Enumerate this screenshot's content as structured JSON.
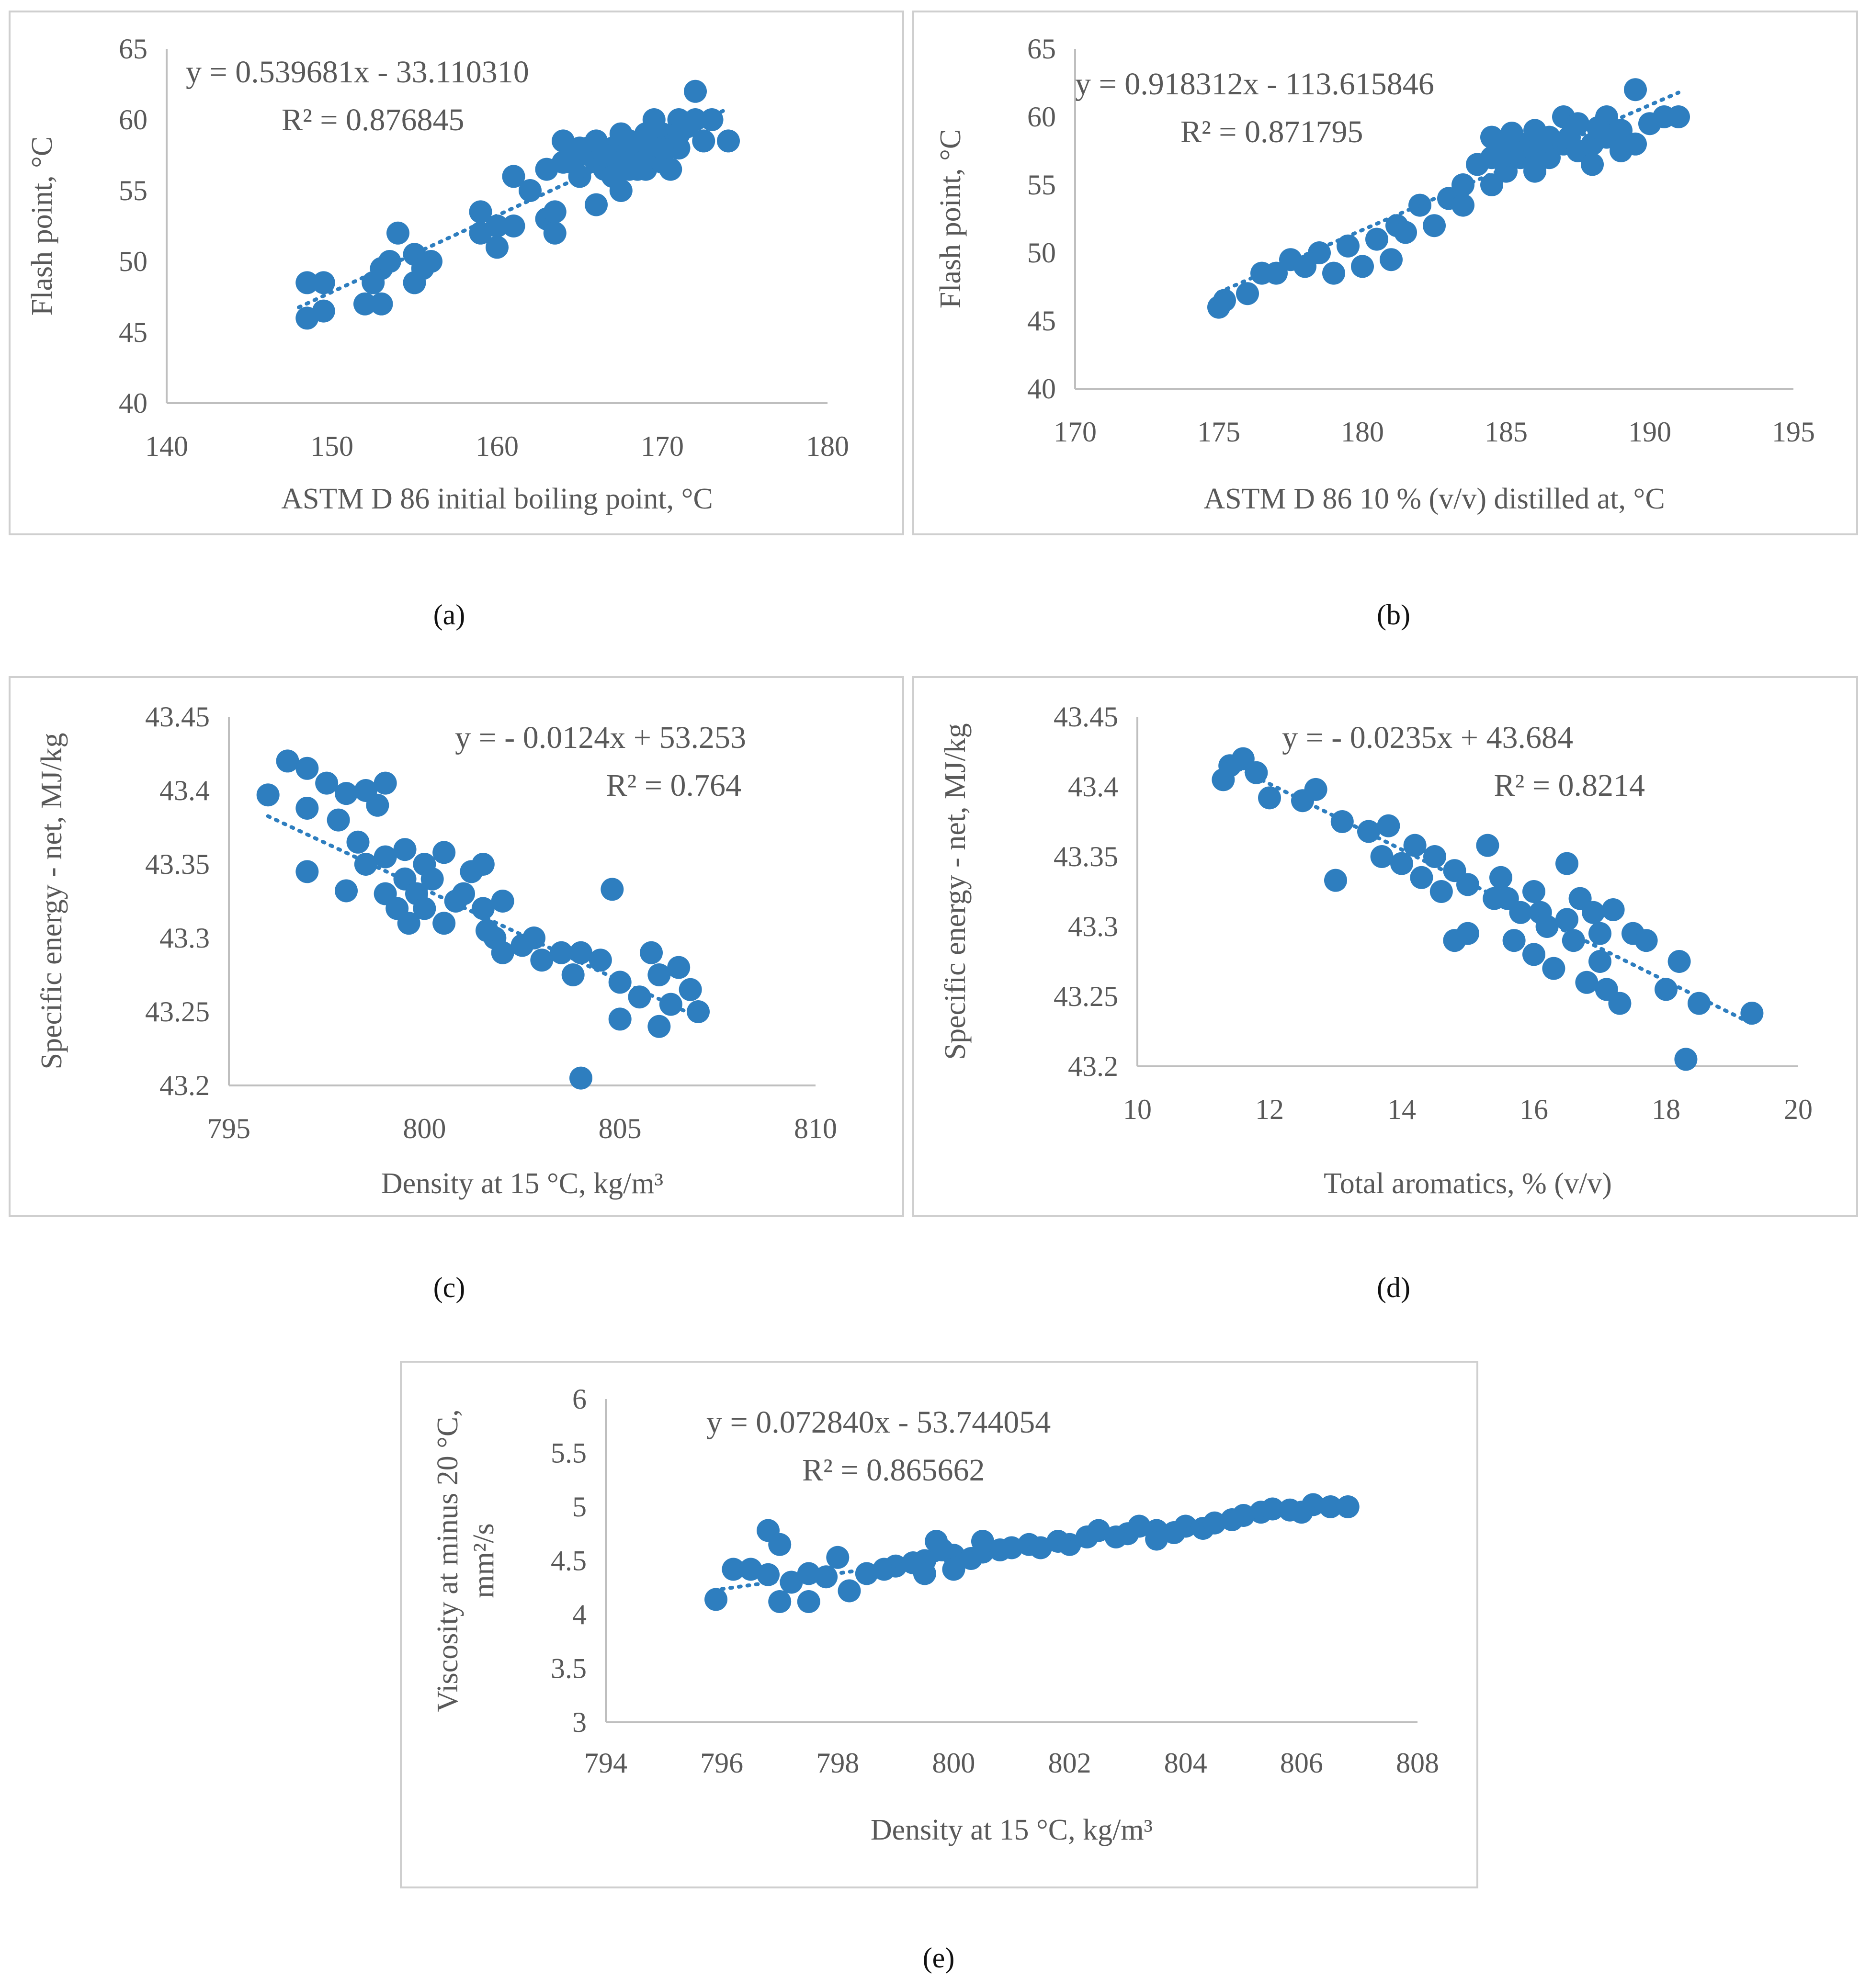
{
  "chart_data": [
    {
      "id": "a",
      "panel_label": "(a)",
      "type": "scatter",
      "xlabel": "ASTM D 86 initial boiling point, °C",
      "ylabel": "Flash point, °C",
      "xlim": [
        140,
        180
      ],
      "ylim": [
        40,
        65
      ],
      "xticks": [
        140,
        150,
        160,
        170,
        180
      ],
      "yticks": [
        40,
        45,
        50,
        55,
        60,
        65
      ],
      "equation": "y = 0.539681x - 33.110310",
      "r2": "R² = 0.876845",
      "trend": {
        "slope": 0.539681,
        "intercept": -33.11031,
        "x_range": [
          148,
          174
        ]
      },
      "color": "#2e7ebf",
      "points": [
        [
          148.5,
          46
        ],
        [
          148.5,
          48.5
        ],
        [
          149.5,
          48.5
        ],
        [
          149.5,
          46.5
        ],
        [
          152,
          47
        ],
        [
          152.5,
          48.5
        ],
        [
          153,
          49.5
        ],
        [
          153,
          47
        ],
        [
          153.5,
          50
        ],
        [
          154,
          52
        ],
        [
          155,
          50.5
        ],
        [
          155,
          48.5
        ],
        [
          155.5,
          49.5
        ],
        [
          156,
          50
        ],
        [
          159,
          53.5
        ],
        [
          159,
          52
        ],
        [
          160,
          51
        ],
        [
          160,
          52.5
        ],
        [
          161,
          52.5
        ],
        [
          161,
          56
        ],
        [
          162,
          55
        ],
        [
          163,
          56.5
        ],
        [
          163,
          53
        ],
        [
          163.5,
          52
        ],
        [
          163.5,
          53.5
        ],
        [
          164,
          58.5
        ],
        [
          164,
          57
        ],
        [
          165,
          57.5
        ],
        [
          165,
          56
        ],
        [
          165.5,
          58
        ],
        [
          166,
          58.5
        ],
        [
          166,
          57
        ],
        [
          166,
          54
        ],
        [
          166.5,
          56.5
        ],
        [
          167,
          58
        ],
        [
          167,
          57.5
        ],
        [
          167,
          56
        ],
        [
          167.5,
          59
        ],
        [
          167.5,
          55
        ],
        [
          168,
          57
        ],
        [
          168,
          58.5
        ],
        [
          168,
          56.5
        ],
        [
          168.5,
          58
        ],
        [
          169,
          57.5
        ],
        [
          169,
          59
        ],
        [
          169,
          56.5
        ],
        [
          169.5,
          58
        ],
        [
          169.5,
          60
        ],
        [
          170,
          59
        ],
        [
          170,
          57
        ],
        [
          170.5,
          58.5
        ],
        [
          170.5,
          56.5
        ],
        [
          171,
          60
        ],
        [
          171,
          58
        ],
        [
          171.5,
          59.5
        ],
        [
          172,
          60
        ],
        [
          172,
          62
        ],
        [
          172.5,
          58.5
        ],
        [
          173,
          60
        ],
        [
          174,
          58.5
        ],
        [
          164.5,
          57
        ],
        [
          165,
          58
        ],
        [
          166.5,
          57.5
        ],
        [
          167.5,
          57
        ],
        [
          168.5,
          56.5
        ],
        [
          169.5,
          59.5
        ],
        [
          170,
          58
        ],
        [
          171,
          59
        ]
      ]
    },
    {
      "id": "b",
      "panel_label": "(b)",
      "type": "scatter",
      "xlabel": "ASTM D 86 10 % (v/v) distilled at, °C",
      "ylabel": "Flash point, °C",
      "xlim": [
        170,
        195
      ],
      "ylim": [
        40,
        65
      ],
      "xticks": [
        170,
        175,
        180,
        185,
        190,
        195
      ],
      "yticks": [
        40,
        45,
        50,
        55,
        60,
        65
      ],
      "equation": "y = 0.918312x - 113.615846",
      "r2": "R² = 0.871795",
      "trend": {
        "slope": 0.918312,
        "intercept": -113.615846,
        "x_range": [
          175,
          191
        ]
      },
      "color": "#2e7ebf",
      "points": [
        [
          175,
          46
        ],
        [
          175.2,
          46.5
        ],
        [
          176,
          47
        ],
        [
          176.5,
          48.5
        ],
        [
          177,
          48.5
        ],
        [
          177.5,
          49.5
        ],
        [
          178,
          49
        ],
        [
          178.5,
          50
        ],
        [
          179,
          48.5
        ],
        [
          179.5,
          50.5
        ],
        [
          180,
          49
        ],
        [
          180.5,
          51
        ],
        [
          181,
          49.5
        ],
        [
          181.2,
          52
        ],
        [
          181.5,
          51.5
        ],
        [
          182,
          53.5
        ],
        [
          182.5,
          52
        ],
        [
          183,
          54
        ],
        [
          183.5,
          53.5
        ],
        [
          183.5,
          55
        ],
        [
          184,
          56.5
        ],
        [
          184.5,
          58.5
        ],
        [
          184.5,
          57
        ],
        [
          184.5,
          55
        ],
        [
          185,
          57.5
        ],
        [
          185,
          56
        ],
        [
          185.5,
          58
        ],
        [
          185.5,
          57
        ],
        [
          186,
          59
        ],
        [
          186,
          57.5
        ],
        [
          186,
          56
        ],
        [
          186.5,
          58.5
        ],
        [
          186.5,
          57
        ],
        [
          187,
          60
        ],
        [
          187,
          58
        ],
        [
          187.5,
          57.5
        ],
        [
          187.5,
          59.5
        ],
        [
          188,
          58
        ],
        [
          188,
          56.5
        ],
        [
          188.5,
          60
        ],
        [
          188.5,
          58.5
        ],
        [
          189,
          59
        ],
        [
          189,
          57.5
        ],
        [
          189.5,
          58
        ],
        [
          189.5,
          62
        ],
        [
          190,
          59.5
        ],
        [
          190.5,
          60
        ],
        [
          191,
          60
        ],
        [
          186.2,
          57.8
        ],
        [
          187.2,
          58.5
        ],
        [
          185.2,
          58.8
        ],
        [
          188.2,
          59.2
        ]
      ]
    },
    {
      "id": "c",
      "panel_label": "(c)",
      "type": "scatter",
      "xlabel": "Density at 15 °C, kg/m³",
      "ylabel": "Specific energy - net, MJ/kg",
      "xlim": [
        795,
        810
      ],
      "ylim": [
        43.2,
        43.45
      ],
      "xticks": [
        795,
        800,
        805,
        810
      ],
      "yticks": [
        43.2,
        43.25,
        43.3,
        43.35,
        43.4,
        43.45
      ],
      "equation": "y = - 0.0124x + 53.253",
      "r2": "R² = 0.764",
      "trend": {
        "slope": -0.0124,
        "intercept": 53.253,
        "x_range": [
          796,
          807
        ]
      },
      "color": "#2e7ebf",
      "points": [
        [
          796,
          43.397
        ],
        [
          796.5,
          43.42
        ],
        [
          797,
          43.415
        ],
        [
          797,
          43.388
        ],
        [
          797,
          43.345
        ],
        [
          797.5,
          43.405
        ],
        [
          797.8,
          43.38
        ],
        [
          798,
          43.398
        ],
        [
          798,
          43.332
        ],
        [
          798.3,
          43.365
        ],
        [
          798.5,
          43.4
        ],
        [
          798.5,
          43.35
        ],
        [
          798.8,
          43.39
        ],
        [
          799,
          43.405
        ],
        [
          799,
          43.355
        ],
        [
          799,
          43.33
        ],
        [
          799.3,
          43.32
        ],
        [
          799.5,
          43.34
        ],
        [
          799.5,
          43.36
        ],
        [
          799.8,
          43.33
        ],
        [
          800,
          43.35
        ],
        [
          800,
          43.32
        ],
        [
          800.2,
          43.34
        ],
        [
          800.5,
          43.358
        ],
        [
          800.5,
          43.31
        ],
        [
          801,
          43.33
        ],
        [
          801.2,
          43.345
        ],
        [
          801.5,
          43.32
        ],
        [
          801.5,
          43.35
        ],
        [
          801.8,
          43.3
        ],
        [
          802,
          43.325
        ],
        [
          802,
          43.29
        ],
        [
          802.5,
          43.295
        ],
        [
          802.8,
          43.3
        ],
        [
          803,
          43.285
        ],
        [
          803.5,
          43.29
        ],
        [
          803.8,
          43.275
        ],
        [
          804,
          43.29
        ],
        [
          804,
          43.205
        ],
        [
          804.5,
          43.285
        ],
        [
          804.8,
          43.333
        ],
        [
          805,
          43.27
        ],
        [
          805,
          43.245
        ],
        [
          805.5,
          43.26
        ],
        [
          805.8,
          43.29
        ],
        [
          806,
          43.275
        ],
        [
          806,
          43.24
        ],
        [
          806.3,
          43.255
        ],
        [
          806.5,
          43.28
        ],
        [
          806.8,
          43.265
        ],
        [
          807,
          43.25
        ],
        [
          800.8,
          43.325
        ],
        [
          799.6,
          43.31
        ],
        [
          801.6,
          43.305
        ]
      ]
    },
    {
      "id": "d",
      "panel_label": "(d)",
      "type": "scatter",
      "xlabel": "Total aromatics, % (v/v)",
      "ylabel": "Specific energy - net, MJ/kg",
      "xlim": [
        10,
        20
      ],
      "ylim": [
        43.2,
        43.45
      ],
      "xticks": [
        10,
        12,
        14,
        16,
        18,
        20
      ],
      "yticks": [
        43.2,
        43.25,
        43.3,
        43.35,
        43.4,
        43.45
      ],
      "equation": "y = - 0.0235x + 43.684",
      "r2": "R² = 0.8214",
      "trend": {
        "slope": -0.0235,
        "intercept": 43.684,
        "x_range": [
          11.3,
          19.3
        ]
      },
      "color": "#2e7ebf",
      "points": [
        [
          11.3,
          43.405
        ],
        [
          11.4,
          43.415
        ],
        [
          11.6,
          43.42
        ],
        [
          11.8,
          43.41
        ],
        [
          12,
          43.392
        ],
        [
          12.5,
          43.39
        ],
        [
          12.7,
          43.398
        ],
        [
          13,
          43.333
        ],
        [
          13.1,
          43.375
        ],
        [
          13.5,
          43.368
        ],
        [
          13.7,
          43.35
        ],
        [
          13.8,
          43.372
        ],
        [
          14,
          43.345
        ],
        [
          14.2,
          43.358
        ],
        [
          14.3,
          43.335
        ],
        [
          14.5,
          43.35
        ],
        [
          14.6,
          43.325
        ],
        [
          14.8,
          43.34
        ],
        [
          14.8,
          43.29
        ],
        [
          15,
          43.33
        ],
        [
          15,
          43.295
        ],
        [
          15.3,
          43.358
        ],
        [
          15.4,
          43.32
        ],
        [
          15.5,
          43.335
        ],
        [
          15.7,
          43.29
        ],
        [
          15.8,
          43.31
        ],
        [
          16,
          43.325
        ],
        [
          16,
          43.28
        ],
        [
          16.2,
          43.3
        ],
        [
          16.3,
          43.27
        ],
        [
          16.5,
          43.345
        ],
        [
          16.5,
          43.305
        ],
        [
          16.7,
          43.32
        ],
        [
          16.8,
          43.26
        ],
        [
          17,
          43.295
        ],
        [
          17,
          43.275
        ],
        [
          17.2,
          43.312
        ],
        [
          17.3,
          43.245
        ],
        [
          17.5,
          43.295
        ],
        [
          17.7,
          43.29
        ],
        [
          18,
          43.255
        ],
        [
          18.2,
          43.275
        ],
        [
          18.3,
          43.205
        ],
        [
          18.5,
          43.245
        ],
        [
          19.3,
          43.238
        ],
        [
          16.1,
          43.31
        ],
        [
          15.6,
          43.32
        ],
        [
          16.6,
          43.29
        ],
        [
          17.1,
          43.255
        ],
        [
          16.9,
          43.31
        ]
      ]
    },
    {
      "id": "e",
      "panel_label": "(e)",
      "type": "scatter",
      "xlabel": "Density at 15 °C, kg/m³",
      "ylabel_lines": [
        "Viscosity at minus 20 °C,",
        "mm²/s"
      ],
      "xlim": [
        794,
        808
      ],
      "ylim": [
        3,
        6
      ],
      "xticks": [
        794,
        796,
        798,
        800,
        802,
        804,
        806,
        808
      ],
      "yticks": [
        3,
        3.5,
        4,
        4.5,
        5,
        5.5,
        6
      ],
      "equation": "y = 0.072840x - 53.744054",
      "r2": "R² = 0.865662",
      "trend": {
        "slope": 0.07284,
        "intercept": -53.744054,
        "x_range": [
          796,
          806.8
        ]
      },
      "color": "#2e7ebf",
      "points": [
        [
          795.9,
          4.14
        ],
        [
          796.2,
          4.42
        ],
        [
          796.5,
          4.42
        ],
        [
          796.8,
          4.37
        ],
        [
          796.8,
          4.78
        ],
        [
          797,
          4.65
        ],
        [
          797,
          4.12
        ],
        [
          797.2,
          4.3
        ],
        [
          797.5,
          4.38
        ],
        [
          797.5,
          4.12
        ],
        [
          797.8,
          4.35
        ],
        [
          798,
          4.53
        ],
        [
          798.2,
          4.22
        ],
        [
          798.5,
          4.38
        ],
        [
          798.8,
          4.42
        ],
        [
          799,
          4.45
        ],
        [
          799.3,
          4.48
        ],
        [
          799.5,
          4.5
        ],
        [
          799.5,
          4.38
        ],
        [
          799.8,
          4.6
        ],
        [
          800,
          4.55
        ],
        [
          800,
          4.42
        ],
        [
          800.3,
          4.52
        ],
        [
          800.5,
          4.58
        ],
        [
          800.8,
          4.6
        ],
        [
          801,
          4.62
        ],
        [
          801.3,
          4.65
        ],
        [
          801.5,
          4.62
        ],
        [
          801.8,
          4.68
        ],
        [
          802,
          4.65
        ],
        [
          802.3,
          4.72
        ],
        [
          802.5,
          4.78
        ],
        [
          802.8,
          4.72
        ],
        [
          803,
          4.75
        ],
        [
          803.2,
          4.82
        ],
        [
          803.5,
          4.78
        ],
        [
          803.8,
          4.76
        ],
        [
          804,
          4.82
        ],
        [
          804.3,
          4.8
        ],
        [
          804.5,
          4.85
        ],
        [
          804.8,
          4.88
        ],
        [
          805,
          4.92
        ],
        [
          805.3,
          4.95
        ],
        [
          805.5,
          4.98
        ],
        [
          805.8,
          4.97
        ],
        [
          806,
          4.95
        ],
        [
          806.2,
          5.02
        ],
        [
          806.5,
          5.0
        ],
        [
          806.8,
          5.0
        ],
        [
          799.7,
          4.68
        ],
        [
          800.5,
          4.68
        ],
        [
          803.5,
          4.7
        ]
      ]
    }
  ]
}
